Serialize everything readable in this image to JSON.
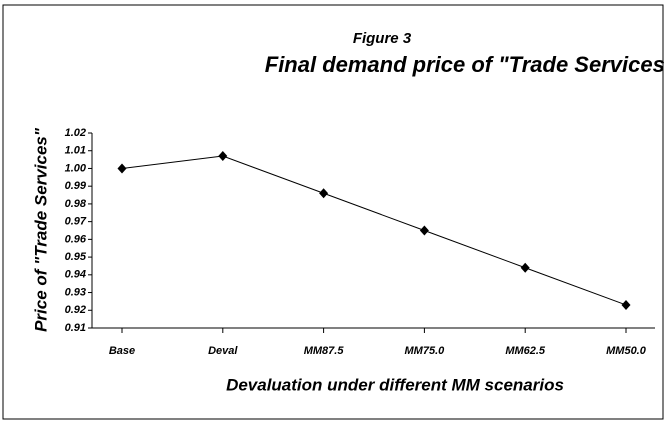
{
  "chart_data": {
    "type": "line",
    "title": "Figure 3",
    "subtitle": "Final demand price of \"Trade Services\"",
    "x_label": "Devaluation under different MM scenarios",
    "y_label": "Price of \"Trade Services\"",
    "categories": [
      "Base",
      "Deval",
      "MM87.5",
      "MM75.0",
      "MM62.5",
      "MM50.0"
    ],
    "values": [
      1.0,
      1.007,
      0.986,
      0.965,
      0.944,
      0.923
    ],
    "color": "#000000",
    "ylim": [
      0.91,
      1.02
    ],
    "yticks": [
      0.91,
      0.92,
      0.93,
      0.94,
      0.95,
      0.96,
      0.97,
      0.98,
      0.99,
      {
        "value": 1,
        "label": "1.00"
      },
      1.01,
      1.02
    ],
    "grid": false
  }
}
